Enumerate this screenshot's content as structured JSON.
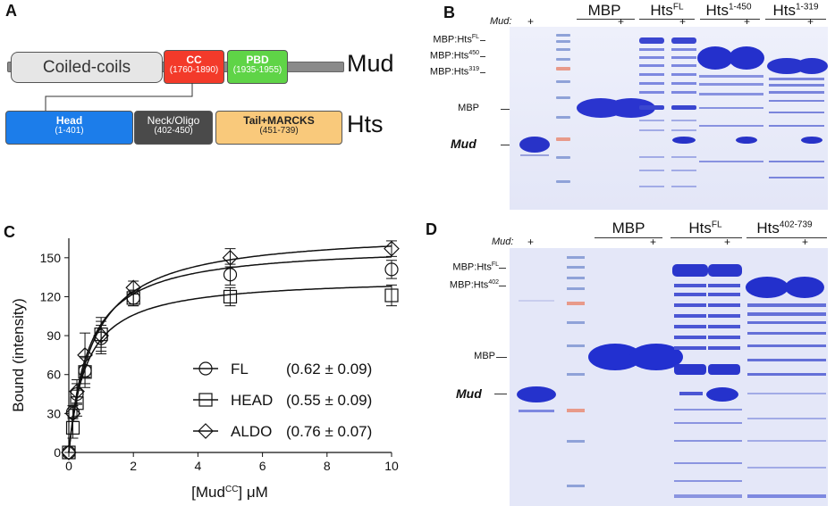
{
  "panels": {
    "a": "A",
    "b": "B",
    "c": "C",
    "d": "D"
  },
  "panel_a": {
    "mud_domains": [
      {
        "title": "Coiled-coils",
        "range": "",
        "color": "#e6e6e6"
      },
      {
        "title": "CC",
        "range": "(1760-1890)",
        "color": "#f33a2a"
      },
      {
        "title": "PBD",
        "range": "(1935-1955)",
        "color": "#5fd447"
      }
    ],
    "mud_label": "Mud",
    "hts_domains": [
      {
        "title": "Head",
        "range": "(1-401)",
        "color": "#1c7dea"
      },
      {
        "title": "Neck/Oligo",
        "range": "(402-450)",
        "color": "#4a4a4a"
      },
      {
        "title": "Tail+MARCKS",
        "range": "(451-739)",
        "color": "#f9c97b"
      }
    ],
    "hts_label": "Hts"
  },
  "panel_b": {
    "mud_row_label": "Mud:",
    "plus": "+",
    "headers": [
      "MBP",
      "Hts",
      "Hts",
      "Hts"
    ],
    "header_sups": [
      "",
      "FL",
      "1-450",
      "1-319"
    ],
    "marker_labels": [
      "MBP:Hts",
      "MBP:Hts",
      "MBP:Hts",
      "MBP",
      "Mud"
    ],
    "marker_sups": [
      "FL",
      "450",
      "319",
      "",
      ""
    ]
  },
  "panel_d": {
    "mud_row_label": "Mud:",
    "plus": "+",
    "headers": [
      "MBP",
      "Hts",
      "Hts"
    ],
    "header_sups": [
      "",
      "FL",
      "402-739"
    ],
    "marker_labels": [
      "MBP:Hts",
      "MBP:Hts",
      "MBP",
      "Mud"
    ],
    "marker_sups": [
      "FL",
      "402",
      "",
      ""
    ]
  },
  "chart_data": {
    "type": "scatter",
    "xlabel": "[Mud",
    "xlabel_sup": "CC",
    "xlabel_end": "] μM",
    "ylabel": "Bound (intensity)",
    "xlim": [
      0,
      10
    ],
    "ylim": [
      0,
      165
    ],
    "xticks": [
      0,
      2,
      4,
      6,
      8,
      10
    ],
    "yticks": [
      0,
      30,
      60,
      90,
      120,
      150
    ],
    "legend_position": "bottom-right",
    "x": [
      0,
      0.125,
      0.25,
      0.5,
      1,
      2,
      5,
      10
    ],
    "series": [
      {
        "name": "FL",
        "kd_text": "(0.62 ± 0.09)",
        "marker": "circle",
        "bmax": 160,
        "values": [
          0,
          31,
          45,
          63,
          88,
          119,
          137,
          141
        ],
        "errors": [
          0,
          5,
          8,
          10,
          10,
          6,
          8,
          7
        ]
      },
      {
        "name": "HEAD",
        "kd_text": "(0.55 ± 0.09)",
        "marker": "square",
        "bmax": 135,
        "values": [
          0,
          19,
          38,
          62,
          91,
          119,
          120,
          121
        ],
        "errors": [
          0,
          8,
          10,
          12,
          10,
          6,
          7,
          8
        ]
      },
      {
        "name": "ALDO",
        "kd_text": "(0.76 ± 0.07)",
        "marker": "diamond",
        "bmax": 171,
        "values": [
          0,
          30,
          47,
          75,
          90,
          127,
          150,
          157
        ],
        "errors": [
          0,
          6,
          9,
          17,
          14,
          5,
          7,
          6
        ]
      }
    ]
  }
}
